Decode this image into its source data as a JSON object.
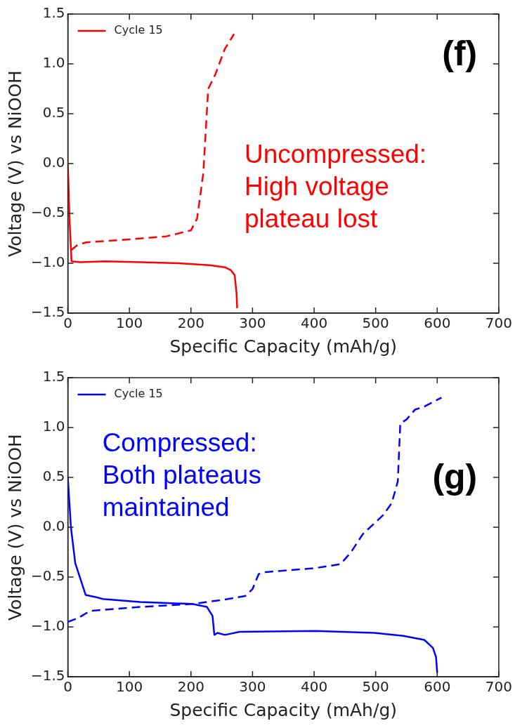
{
  "chart_data": [
    {
      "type": "line",
      "xlabel": "Specific Capacity (mAh/g)",
      "ylabel": "Voltage (V) vs NiOOH",
      "legend": "top left",
      "xlim": [
        0,
        700
      ],
      "ylim": [
        -1.5,
        1.5
      ],
      "xticks": [
        0,
        100,
        200,
        300,
        400,
        500,
        600,
        700
      ],
      "yticks": [
        {
          "value": -1.5,
          "label": "−1.5"
        },
        {
          "value": -1.0,
          "label": "−1.0"
        },
        {
          "value": -0.5,
          "label": "−0.5"
        },
        {
          "value": 0,
          "label": "0.0"
        },
        {
          "value": 0.5,
          "label": "0.5"
        },
        {
          "value": 1.0,
          "label": "1.0"
        },
        {
          "value": 1.5,
          "label": "1.5"
        }
      ],
      "annotations": [
        "(f)",
        "Uncompressed:\nHigh voltage\nplateau lost"
      ],
      "series": [
        {
          "name": "Cycle 15",
          "color": "#ff0000",
          "line_style": "solid",
          "x": [
            0,
            3,
            6,
            20,
            60,
            120,
            180,
            230,
            255,
            265,
            271,
            274,
            275
          ],
          "values": [
            0.0,
            -0.6,
            -0.98,
            -0.99,
            -0.98,
            -0.99,
            -1.0,
            -1.02,
            -1.04,
            -1.07,
            -1.12,
            -1.3,
            -1.45
          ]
        },
        {
          "color": "#ff0000",
          "line_style": "dashed",
          "x": [
            5,
            15,
            30,
            100,
            160,
            200,
            210,
            220,
            228,
            240,
            255,
            270
          ],
          "values": [
            -0.87,
            -0.82,
            -0.79,
            -0.76,
            -0.73,
            -0.67,
            -0.55,
            -0.1,
            0.75,
            0.9,
            1.15,
            1.3
          ]
        }
      ]
    },
    {
      "type": "line",
      "xlabel": "Specific Capacity (mAh/g)",
      "ylabel": "Voltage (V) vs NiOOH",
      "legend": "top left",
      "xlim": [
        0,
        700
      ],
      "ylim": [
        -1.5,
        1.5
      ],
      "xticks": [
        0,
        100,
        200,
        300,
        400,
        500,
        600,
        700
      ],
      "yticks": [
        {
          "value": -1.5,
          "label": "−1.5"
        },
        {
          "value": -1.0,
          "label": "−1.0"
        },
        {
          "value": -0.5,
          "label": "−0.5"
        },
        {
          "value": 0,
          "label": "0.0"
        },
        {
          "value": 0.5,
          "label": "0.5"
        },
        {
          "value": 1.0,
          "label": "1.0"
        },
        {
          "value": 1.5,
          "label": "1.5"
        }
      ],
      "annotations": [
        "(g)",
        "Compressed:\nBoth plateaus\nmaintained"
      ],
      "series": [
        {
          "name": "Cycle 15",
          "color": "#0000ff",
          "line_style": "solid",
          "x": [
            0,
            5,
            12,
            29,
            45,
            57,
            117,
            202,
            226,
            235,
            238,
            243,
            255,
            279,
            402,
            498,
            545,
            579,
            593,
            598,
            600
          ],
          "values": [
            0.5,
            0.0,
            -0.36,
            -0.68,
            -0.7,
            -0.72,
            -0.75,
            -0.77,
            -0.8,
            -0.89,
            -1.08,
            -1.06,
            -1.08,
            -1.05,
            -1.04,
            -1.06,
            -1.09,
            -1.13,
            -1.21,
            -1.3,
            -1.46
          ]
        },
        {
          "color": "#0000ff",
          "line_style": "dashed",
          "x": [
            0,
            17,
            36,
            117,
            202,
            250,
            288,
            300,
            310,
            321,
            402,
            443,
            460,
            479,
            512,
            526,
            536,
            540,
            550,
            564,
            579,
            607
          ],
          "values": [
            -0.95,
            -0.91,
            -0.84,
            -0.8,
            -0.77,
            -0.73,
            -0.69,
            -0.62,
            -0.47,
            -0.45,
            -0.41,
            -0.37,
            -0.25,
            -0.07,
            0.12,
            0.24,
            0.46,
            1.04,
            1.08,
            1.18,
            1.21,
            1.3
          ]
        }
      ]
    }
  ]
}
